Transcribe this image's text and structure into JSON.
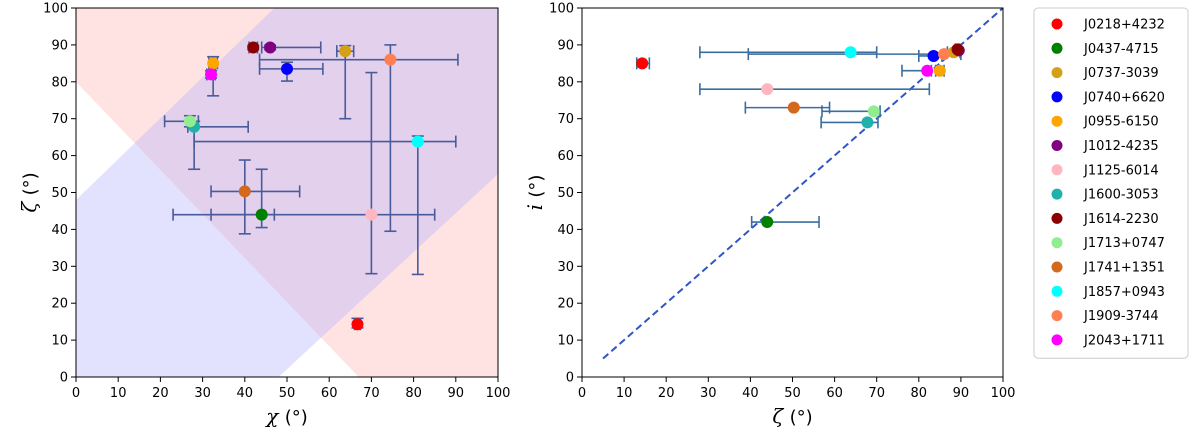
{
  "chart_data": [
    {
      "type": "scatter",
      "title": "",
      "xlabel": "χ",
      "xunit": "(°)",
      "ylabel": "ζ",
      "yunit": "(°)",
      "xlim": [
        0,
        100
      ],
      "ylim": [
        0,
        100
      ],
      "xticks": [
        "0",
        "10",
        "20",
        "30",
        "40",
        "50",
        "60",
        "70",
        "80",
        "90",
        "100"
      ],
      "yticks": [
        "0",
        "10",
        "20",
        "30",
        "40",
        "50",
        "60",
        "70",
        "80",
        "90",
        "100"
      ],
      "regions": [
        {
          "name": "pink-region",
          "color": "#ffb3b3",
          "opacity": 0.38,
          "polygon": [
            [
              0,
              100
            ],
            [
              100,
              100
            ],
            [
              100,
              0
            ],
            [
              67,
              0
            ],
            [
              0,
              80
            ]
          ]
        },
        {
          "name": "blue-region",
          "color": "#b3b3ff",
          "opacity": 0.38,
          "polygon": [
            [
              0,
              0
            ],
            [
              48,
              0
            ],
            [
              100,
              55
            ],
            [
              100,
              100
            ],
            [
              47,
              100
            ],
            [
              0,
              48
            ]
          ]
        }
      ],
      "errorbar_color": "#4a5b9a",
      "points": [
        {
          "name": "J0218+4232",
          "x": 66.7,
          "y": 14.3,
          "xerr": [
            0.7,
            0.7
          ],
          "yerr": [
            1.0,
            1.6
          ]
        },
        {
          "name": "J0437-4715",
          "x": 44.0,
          "y": 44.0,
          "xerr": [
            21.0,
            3.0
          ],
          "yerr": [
            3.5,
            12.3
          ]
        },
        {
          "name": "J0737-3039",
          "x": 63.8,
          "y": 88.3,
          "xerr": [
            2.0,
            2.0
          ],
          "yerr": [
            18.3,
            1.5
          ]
        },
        {
          "name": "J0740+6620",
          "x": 50.0,
          "y": 83.5,
          "xerr": [
            6.5,
            8.5
          ],
          "yerr": [
            3.3,
            1.8
          ]
        },
        {
          "name": "J0955-6150",
          "x": 32.5,
          "y": 85.0,
          "xerr": [
            1.0,
            1.0
          ],
          "yerr": [
            8.8,
            1.8
          ]
        },
        {
          "name": "J1012-4235",
          "x": 46.0,
          "y": 89.3,
          "xerr": [
            2.0,
            12.0
          ],
          "yerr": [
            0.6,
            0.6
          ]
        },
        {
          "name": "J1125-6014",
          "x": 70.0,
          "y": 44.0,
          "xerr": [
            38.0,
            15.0
          ],
          "yerr": [
            16.0,
            38.5
          ]
        },
        {
          "name": "J1600-3053",
          "x": 28.0,
          "y": 67.8,
          "xerr": [
            1.5,
            12.8
          ],
          "yerr": [
            11.5,
            1.5
          ]
        },
        {
          "name": "J1614-2230",
          "x": 42.0,
          "y": 89.3,
          "xerr": [
            1.0,
            1.0
          ],
          "yerr": [
            0.6,
            0.6
          ]
        },
        {
          "name": "J1713+0747",
          "x": 27.0,
          "y": 69.3,
          "xerr": [
            6.0,
            2.0
          ],
          "yerr": [
            1.5,
            1.5
          ]
        },
        {
          "name": "J1741+1351",
          "x": 40.0,
          "y": 50.3,
          "xerr": [
            8.0,
            13.0
          ],
          "yerr": [
            11.5,
            8.5
          ]
        },
        {
          "name": "J1857+0943",
          "x": 81.0,
          "y": 63.8,
          "xerr": [
            53.0,
            9.0
          ],
          "yerr": [
            36.0,
            1.5
          ]
        },
        {
          "name": "J1909-3744",
          "x": 74.5,
          "y": 86.0,
          "xerr": [
            31.0,
            16.0
          ],
          "yerr": [
            46.5,
            4.0
          ]
        },
        {
          "name": "J2043+1711",
          "x": 32.0,
          "y": 82.0,
          "xerr": [
            1.0,
            1.0
          ],
          "yerr": [
            1.0,
            1.0
          ]
        }
      ]
    },
    {
      "type": "scatter",
      "title": "",
      "xlabel": "ζ",
      "xunit": "(°)",
      "ylabel": "i",
      "yunit": "(°)",
      "xlim": [
        0,
        100
      ],
      "ylim": [
        0,
        100
      ],
      "xticks": [
        "0",
        "10",
        "20",
        "30",
        "40",
        "50",
        "60",
        "70",
        "80",
        "90",
        "100"
      ],
      "yticks": [
        "0",
        "10",
        "20",
        "30",
        "40",
        "50",
        "60",
        "70",
        "80",
        "90",
        "100"
      ],
      "reference_line": {
        "x": [
          5,
          100
        ],
        "y": [
          5,
          100
        ],
        "style": "dashed",
        "color": "#2f55c8"
      },
      "errorbar_color": "#3a6ea0",
      "points": [
        {
          "name": "J0218+4232",
          "x": 14.3,
          "y": 85.0,
          "xerr": [
            1.3,
            1.7
          ]
        },
        {
          "name": "J0437-4715",
          "x": 44.0,
          "y": 42.0,
          "xerr": [
            3.7,
            12.3
          ]
        },
        {
          "name": "J0737-3039",
          "x": 88.3,
          "y": 88.0,
          "xerr": [
            1.5,
            1.5
          ]
        },
        {
          "name": "J0740+6620",
          "x": 83.5,
          "y": 87.0,
          "xerr": [
            3.5,
            2.0
          ]
        },
        {
          "name": "J0955-6150",
          "x": 85.0,
          "y": 83.0,
          "xerr": [
            1.0,
            1.0
          ]
        },
        {
          "name": "J1012-4235",
          "x": 89.5,
          "y": 88.5,
          "xerr": [
            0.5,
            0.5
          ]
        },
        {
          "name": "J1125-6014",
          "x": 44.0,
          "y": 78.0,
          "xerr": [
            16.0,
            38.5
          ]
        },
        {
          "name": "J1600-3053",
          "x": 67.8,
          "y": 69.0,
          "xerr": [
            11.0,
            2.5
          ]
        },
        {
          "name": "J1614-2230",
          "x": 89.2,
          "y": 88.8,
          "xerr": [
            0.5,
            0.5
          ]
        },
        {
          "name": "J1713+0747",
          "x": 69.3,
          "y": 72.0,
          "xerr": [
            12.3,
            1.5
          ]
        },
        {
          "name": "J1741+1351",
          "x": 50.3,
          "y": 73.0,
          "xerr": [
            11.5,
            8.5
          ]
        },
        {
          "name": "J1857+0943",
          "x": 63.8,
          "y": 88.0,
          "xerr": [
            35.8,
            6.2
          ]
        },
        {
          "name": "J1909-3744",
          "x": 86.0,
          "y": 87.5,
          "xerr": [
            46.5,
            4.0
          ]
        },
        {
          "name": "J2043+1711",
          "x": 82.0,
          "y": 83.0,
          "xerr": [
            6.0,
            1.0
          ]
        }
      ]
    }
  ],
  "legend": {
    "placement": "right",
    "entries": [
      {
        "label": "J0218+4232",
        "color": "#ff0000"
      },
      {
        "label": "J0437-4715",
        "color": "#008000"
      },
      {
        "label": "J0737-3039",
        "color": "#d4a017"
      },
      {
        "label": "J0740+6620",
        "color": "#0000ff"
      },
      {
        "label": "J0955-6150",
        "color": "#ffa500"
      },
      {
        "label": "J1012-4235",
        "color": "#800080"
      },
      {
        "label": "J1125-6014",
        "color": "#ffb6c1"
      },
      {
        "label": "J1600-3053",
        "color": "#20b2aa"
      },
      {
        "label": "J1614-2230",
        "color": "#8b0000"
      },
      {
        "label": "J1713+0747",
        "color": "#90ee90"
      },
      {
        "label": "J1741+1351",
        "color": "#d2691e"
      },
      {
        "label": "J1857+0943",
        "color": "#00ffff"
      },
      {
        "label": "J1909-3744",
        "color": "#ff7f50"
      },
      {
        "label": "J2043+1711",
        "color": "#ff00ff"
      }
    ]
  }
}
